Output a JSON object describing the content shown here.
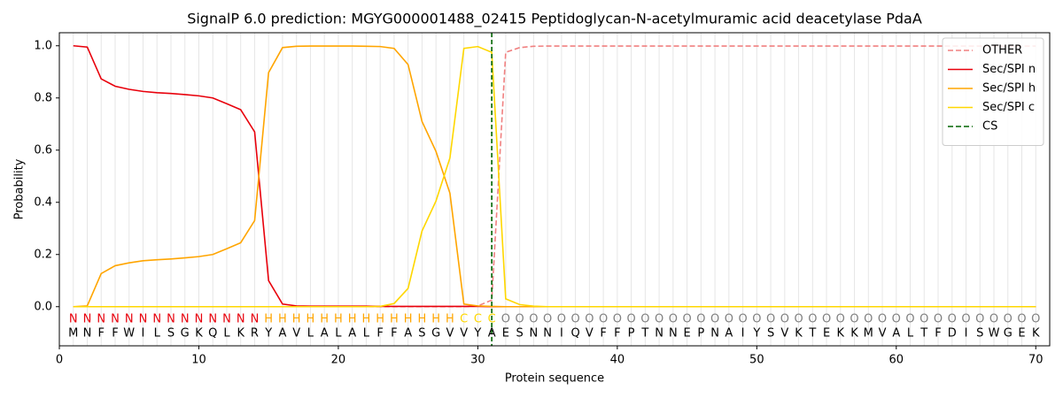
{
  "chart_data": {
    "type": "line",
    "title": "SignalP 6.0 prediction: MGYG000001488_02415 Peptidoglycan-N-acetylmuramic acid deacetylase PdaA",
    "x_label": "Protein sequence",
    "y_label": "Probability",
    "xlim": [
      0,
      71
    ],
    "ylim": [
      -0.15,
      1.05
    ],
    "xticks": [
      0,
      10,
      20,
      30,
      40,
      50,
      60,
      70
    ],
    "yticks": [
      {
        "value": 0,
        "label": "0.0"
      },
      {
        "value": 0.2,
        "label": "0.2"
      },
      {
        "value": 0.4,
        "label": "0.4"
      },
      {
        "value": 0.6,
        "label": "0.6"
      },
      {
        "value": 0.8,
        "label": "0.8"
      },
      {
        "value": 1,
        "label": "1.0"
      }
    ],
    "grid": true,
    "legend": "upper right",
    "x": [
      1,
      2,
      3,
      4,
      5,
      6,
      7,
      8,
      9,
      10,
      11,
      12,
      13,
      14,
      15,
      16,
      17,
      18,
      19,
      20,
      21,
      22,
      23,
      24,
      25,
      26,
      27,
      28,
      29,
      30,
      31,
      32,
      33,
      34,
      35,
      36,
      37,
      38,
      39,
      40,
      41,
      42,
      43,
      44,
      45,
      46,
      47,
      48,
      49,
      50,
      51,
      52,
      53,
      54,
      55,
      56,
      57,
      58,
      59,
      60,
      61,
      62,
      63,
      64,
      65,
      66,
      67,
      68,
      69,
      70
    ],
    "series": [
      {
        "name": "OTHER",
        "color": "#f08080",
        "dashed": true,
        "values": [
          0,
          0,
          0,
          0,
          0,
          0,
          0,
          0,
          0,
          0,
          0,
          0,
          0,
          0,
          0,
          0,
          0,
          0,
          0,
          0,
          0,
          0,
          0,
          0,
          0,
          0,
          0,
          0,
          0,
          0.003,
          0.025,
          0.975,
          0.993,
          0.998,
          0.999,
          0.999,
          0.999,
          0.999,
          0.999,
          0.999,
          0.999,
          0.999,
          0.999,
          0.999,
          0.999,
          0.999,
          0.999,
          0.999,
          0.999,
          0.999,
          0.999,
          0.999,
          0.999,
          0.999,
          0.999,
          0.999,
          0.999,
          0.999,
          0.999,
          0.999,
          0.999,
          0.999,
          0.999,
          0.999,
          0.999,
          0.999,
          0.999,
          0.999,
          0.999,
          0.999
        ]
      },
      {
        "name": "Sec/SPI n",
        "color": "#e8000b",
        "dashed": false,
        "values": [
          1.0,
          0.995,
          0.873,
          0.845,
          0.833,
          0.825,
          0.82,
          0.817,
          0.813,
          0.808,
          0.8,
          0.778,
          0.755,
          0.67,
          0.1,
          0.01,
          0.003,
          0.002,
          0.002,
          0.002,
          0.002,
          0.002,
          0.001,
          0.001,
          0.001,
          0.001,
          0.001,
          0.001,
          0.001,
          0.001,
          0,
          0,
          0,
          0,
          0,
          0,
          0,
          0,
          0,
          0,
          0,
          0,
          0,
          0,
          0,
          0,
          0,
          0,
          0,
          0,
          0,
          0,
          0,
          0,
          0,
          0,
          0,
          0,
          0,
          0,
          0,
          0,
          0,
          0,
          0,
          0,
          0,
          0,
          0,
          0
        ]
      },
      {
        "name": "Sec/SPI h",
        "color": "#ffa500",
        "dashed": false,
        "values": [
          0,
          0.003,
          0.127,
          0.157,
          0.168,
          0.176,
          0.18,
          0.183,
          0.187,
          0.192,
          0.2,
          0.222,
          0.245,
          0.33,
          0.897,
          0.993,
          0.998,
          0.999,
          0.999,
          0.999,
          0.999,
          0.998,
          0.997,
          0.99,
          0.928,
          0.71,
          0.595,
          0.435,
          0.01,
          0.003,
          0.001,
          0,
          0,
          0,
          0,
          0,
          0,
          0,
          0,
          0,
          0,
          0,
          0,
          0,
          0,
          0,
          0,
          0,
          0,
          0,
          0,
          0,
          0,
          0,
          0,
          0,
          0,
          0,
          0,
          0,
          0,
          0,
          0,
          0,
          0,
          0,
          0,
          0,
          0,
          0
        ]
      },
      {
        "name": "Sec/SPI c",
        "color": "#ffd700",
        "dashed": false,
        "values": [
          0,
          0,
          0,
          0,
          0,
          0,
          0,
          0,
          0,
          0,
          0,
          0,
          0,
          0,
          0,
          0,
          0,
          0,
          0,
          0,
          0,
          0,
          0.001,
          0.012,
          0.07,
          0.29,
          0.405,
          0.57,
          0.99,
          0.997,
          0.975,
          0.03,
          0.008,
          0.002,
          0,
          0,
          0,
          0,
          0,
          0,
          0,
          0,
          0,
          0,
          0,
          0,
          0,
          0,
          0,
          0,
          0,
          0,
          0,
          0,
          0,
          0,
          0,
          0,
          0,
          0,
          0,
          0,
          0,
          0,
          0,
          0,
          0,
          0,
          0,
          0
        ]
      }
    ],
    "cs": {
      "name": "CS",
      "color": "#006400",
      "x": 31
    },
    "regions": [
      "N",
      "N",
      "N",
      "N",
      "N",
      "N",
      "N",
      "N",
      "N",
      "N",
      "N",
      "N",
      "N",
      "N",
      "H",
      "H",
      "H",
      "H",
      "H",
      "H",
      "H",
      "H",
      "H",
      "H",
      "H",
      "H",
      "H",
      "H",
      "C",
      "C",
      "C",
      "O",
      "O",
      "O",
      "O",
      "O",
      "O",
      "O",
      "O",
      "O",
      "O",
      "O",
      "O",
      "O",
      "O",
      "O",
      "O",
      "O",
      "O",
      "O",
      "O",
      "O",
      "O",
      "O",
      "O",
      "O",
      "O",
      "O",
      "O",
      "O",
      "O",
      "O",
      "O",
      "O",
      "O",
      "O",
      "O",
      "O",
      "O",
      "O"
    ],
    "region_colors": {
      "N": "#e8000b",
      "H": "#ffa500",
      "C": "#ffd700",
      "O": "#808080"
    },
    "sequence": [
      "M",
      "N",
      "F",
      "F",
      "W",
      "I",
      "L",
      "S",
      "G",
      "K",
      "Q",
      "L",
      "K",
      "R",
      "Y",
      "A",
      "V",
      "L",
      "A",
      "L",
      "A",
      "L",
      "F",
      "F",
      "A",
      "S",
      "G",
      "V",
      "V",
      "Y",
      "A",
      "E",
      "S",
      "N",
      "N",
      "I",
      "Q",
      "V",
      "F",
      "F",
      "P",
      "T",
      "N",
      "N",
      "E",
      "P",
      "N",
      "A",
      "I",
      "Y",
      "S",
      "V",
      "K",
      "T",
      "E",
      "K",
      "K",
      "M",
      "V",
      "A",
      "L",
      "T",
      "F",
      "D",
      "I",
      "S",
      "W",
      "G",
      "E",
      "K"
    ]
  }
}
